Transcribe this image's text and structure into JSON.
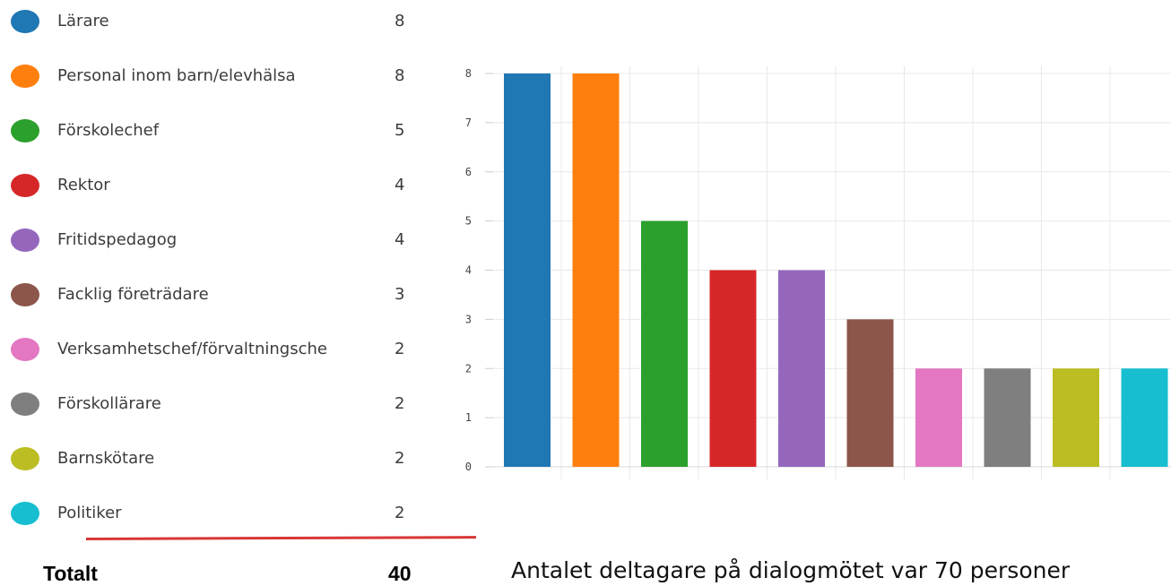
{
  "legend": {
    "items": [
      {
        "label": "Lärare",
        "count": "8",
        "color": "#1f77b4"
      },
      {
        "label": "Personal inom barn/elevhälsa",
        "count": "8",
        "color": "#ff7f0e"
      },
      {
        "label": "Förskolechef",
        "count": "5",
        "color": "#2ca02c"
      },
      {
        "label": "Rektor",
        "count": "4",
        "color": "#d62728"
      },
      {
        "label": "Fritidspedagog",
        "count": "4",
        "color": "#9467bd"
      },
      {
        "label": "Facklig företrädare",
        "count": "3",
        "color": "#8c564b"
      },
      {
        "label": "Verksamhetschef/förvaltningsche",
        "count": "2",
        "color": "#e377c2"
      },
      {
        "label": "Förskollärare",
        "count": "2",
        "color": "#7f7f7f"
      },
      {
        "label": "Barnskötare",
        "count": "2",
        "color": "#bcbd22"
      },
      {
        "label": "Politiker",
        "count": "2",
        "color": "#17becf"
      }
    ]
  },
  "summary": {
    "total_label": "Totalt",
    "total_value": "40",
    "divider_color": "#d93636"
  },
  "note": "Antalet deltagare på dialogmötet var 70 personer",
  "chart_data": {
    "type": "bar",
    "categories": [
      "Lärare",
      "Personal inom barn/elevhälsa",
      "Förskolechef",
      "Rektor",
      "Fritidspedagog",
      "Facklig företrädare",
      "Verksamhetschef/förvaltningsche",
      "Förskollärare",
      "Barnskötare",
      "Politiker"
    ],
    "values": [
      8,
      8,
      5,
      4,
      4,
      3,
      2,
      2,
      2,
      2
    ],
    "colors": [
      "#1f77b4",
      "#ff7f0e",
      "#2ca02c",
      "#d62728",
      "#9467bd",
      "#8c564b",
      "#e377c2",
      "#7f7f7f",
      "#bcbd22",
      "#17becf"
    ],
    "title": "",
    "xlabel": "",
    "ylabel": "",
    "ylim": [
      0,
      8
    ],
    "yticks": [
      "0",
      "1",
      "2",
      "3",
      "4",
      "5",
      "6",
      "7",
      "8"
    ],
    "grid": true,
    "legend_position": "left"
  }
}
